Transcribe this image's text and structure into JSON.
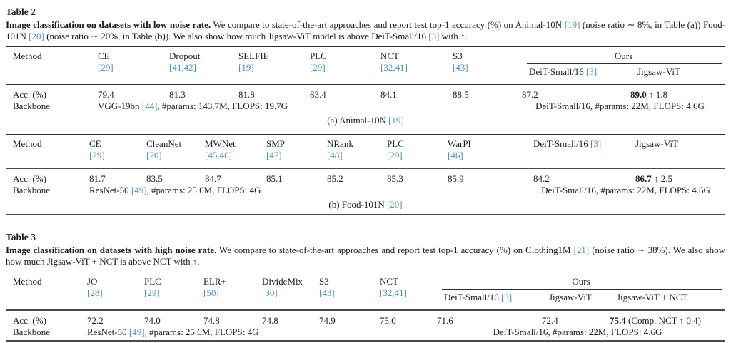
{
  "palette": {
    "text": "#1b1b1b",
    "ref": "#4a90c2",
    "rule_dark": "#2e2e2e",
    "rule_thick": "#4a4a4a"
  },
  "table2": {
    "label": "Table 2",
    "caption": [
      {
        "t": "Image classification on datasets with low noise rate.",
        "s": "b"
      },
      {
        "t": " We compare to state-of-the-art approaches and report test top-1 accuracy (%) on Animal-10N ",
        "s": ""
      },
      {
        "t": "[19]",
        "s": "r"
      },
      {
        "t": " (noise ratio ∼ 8%, in Table (a)) Food-101N ",
        "s": ""
      },
      {
        "t": "[20]",
        "s": "r"
      },
      {
        "t": " (noise ratio ∼ 20%, in Table (b)). We also show how much Jigsaw-ViT model is above DeiT-Small/16 ",
        "s": ""
      },
      {
        "t": "[3]",
        "s": "r"
      },
      {
        "t": " with ↑.",
        "s": ""
      }
    ],
    "a": {
      "method_header": "Method",
      "cols": [
        {
          "name": "CE",
          "ref": "[29]"
        },
        {
          "name": "Dropout",
          "ref": "[41,42]"
        },
        {
          "name": "SELFIE",
          "ref": "[19]"
        },
        {
          "name": "PLC",
          "ref": "[29]"
        },
        {
          "name": "NCT",
          "ref": "[32,41]"
        },
        {
          "name": "S3",
          "ref": "[43]"
        }
      ],
      "ours_label": "Ours",
      "ours_cols": [
        [
          {
            "t": "DeiT-Small/16 ",
            "s": ""
          },
          {
            "t": "[3]",
            "s": "r"
          }
        ],
        [
          {
            "t": "Jigsaw-ViT",
            "s": ""
          }
        ]
      ],
      "acc_label": "Acc. (%)",
      "acc": [
        "79.4",
        "81.3",
        "81.8",
        "83.4",
        "84.1",
        "88.5"
      ],
      "acc_ours": [
        "87.2"
      ],
      "acc_best": [
        {
          "t": "89.0",
          "s": "b"
        },
        {
          "t": " ↑ 1.8",
          "s": ""
        }
      ],
      "backbone_label": "Backbone",
      "backbone_left": [
        {
          "t": "VGG-19bn ",
          "s": ""
        },
        {
          "t": "[44]",
          "s": "r"
        },
        {
          "t": ", #params: 143.7M, FLOPS: 19.7G",
          "s": ""
        }
      ],
      "backbone_right": "DeiT-Small/16, #params: 22M, FLOPS: 4.6G",
      "subcaption": [
        {
          "t": "(a) Animal-10N ",
          "s": ""
        },
        {
          "t": "[19]",
          "s": "r"
        }
      ]
    },
    "b": {
      "method_header": "Method",
      "cols": [
        {
          "name": "CE",
          "ref": "[29]"
        },
        {
          "name": "CleanNet",
          "ref": "[20]"
        },
        {
          "name": "MWNet",
          "ref": "[45,46]"
        },
        {
          "name": "SMP",
          "ref": "[47]"
        },
        {
          "name": "NRank",
          "ref": "[48]"
        },
        {
          "name": "PLC",
          "ref": "[29]"
        },
        {
          "name": "WarPI",
          "ref": "[46]"
        }
      ],
      "deit_header": [
        {
          "t": "DeiT-Small/16 ",
          "s": ""
        },
        {
          "t": "[3]",
          "s": "r"
        }
      ],
      "jigsaw_header": "Jigsaw-ViT",
      "acc_label": "Acc. (%)",
      "acc": [
        "81.7",
        "83.5",
        "84.7",
        "85.1",
        "85.2",
        "85.3",
        "85.9"
      ],
      "acc_deit": "84.2",
      "acc_best": [
        {
          "t": "86.7",
          "s": "b"
        },
        {
          "t": " ↑ 2.5",
          "s": ""
        }
      ],
      "backbone_label": "Backbone",
      "backbone_left": [
        {
          "t": "ResNet-50 ",
          "s": ""
        },
        {
          "t": "[49]",
          "s": "r"
        },
        {
          "t": ", #params: 25.6M, FLOPS: 4G",
          "s": ""
        }
      ],
      "backbone_right": "DeiT-Small/16, #params: 22M, FLOPS: 4.6G",
      "subcaption": [
        {
          "t": "(b) Food-101N ",
          "s": ""
        },
        {
          "t": "[20]",
          "s": "r"
        }
      ]
    }
  },
  "table3": {
    "label": "Table 3",
    "caption": [
      {
        "t": "Image classification on datasets with high noise rate.",
        "s": "b"
      },
      {
        "t": " We compare to state-of-the-art approaches and report test top-1 accuracy (%) on Clothing1M ",
        "s": ""
      },
      {
        "t": "[21]",
        "s": "r"
      },
      {
        "t": " (noise ratio ∼ 38%). We also show how much Jigsaw-ViT + NCT is above NCT with ↑.",
        "s": ""
      }
    ],
    "method_header": "Method",
    "cols": [
      {
        "name": "JO",
        "ref": "[28]"
      },
      {
        "name": "PLC",
        "ref": "[29]"
      },
      {
        "name": "ELR+",
        "ref": "[50]"
      },
      {
        "name": "DivideMix",
        "ref": "[30]"
      },
      {
        "name": "S3",
        "ref": "[43]"
      },
      {
        "name": "NCT",
        "ref": "[32,41]"
      }
    ],
    "ours_label": "Ours",
    "ours_cols": [
      [
        {
          "t": "DeiT-Small/16 ",
          "s": ""
        },
        {
          "t": "[3]",
          "s": "r"
        }
      ],
      [
        {
          "t": "Jigsaw-ViT",
          "s": ""
        }
      ],
      [
        {
          "t": "Jigsaw-ViT + NCT",
          "s": ""
        }
      ]
    ],
    "acc_label": "Acc. (%)",
    "acc": [
      "72.2",
      "74.0",
      "74.8",
      "74.8",
      "74.9",
      "75.0"
    ],
    "acc_ours": [
      "71.6",
      "72.4"
    ],
    "acc_best": [
      {
        "t": "75.4",
        "s": "b"
      },
      {
        "t": " (Comp. NCT ↑ 0.4)",
        "s": ""
      }
    ],
    "backbone_label": "Backbone",
    "backbone_left": [
      {
        "t": "ResNet-50 ",
        "s": ""
      },
      {
        "t": "[49]",
        "s": "r"
      },
      {
        "t": ", #params: 25.6M, FLOPS: 4G",
        "s": ""
      }
    ],
    "backbone_right": "DeiT-Small/16, #params: 22M, FLOPS: 4.6G"
  }
}
